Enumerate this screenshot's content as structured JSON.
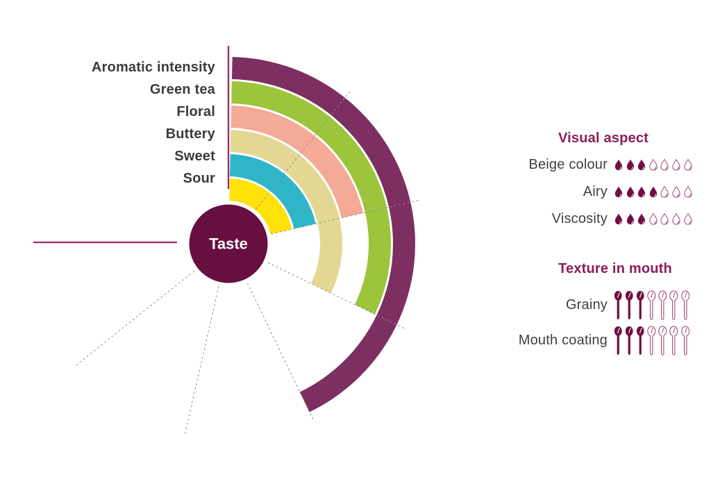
{
  "colors": {
    "center_circle": "#670F3F",
    "axis_line": "#9B2F63",
    "gridline": "#8F8F8F",
    "heading": "#8C1D57",
    "label_text": "#3B3B3B",
    "center_label_text": "#FFFFFF",
    "icon_filled": "#701044",
    "icon_outline": "#A6527E"
  },
  "chart_data": {
    "type": "radial-bar",
    "center_label": "Taste",
    "scale_max": 7,
    "max_sweep_deg": 270,
    "grid": "radial dashed lines at each unit, solid axis at 0 (top) and 270 (left)",
    "rings_outer_to_inner": [
      {
        "label": "Aromatic intensity",
        "value": 4,
        "color": "#7C2F60"
      },
      {
        "label": "Green tea",
        "value": 3,
        "color": "#9CC53C"
      },
      {
        "label": "Floral",
        "value": 2,
        "color": "#F5A997"
      },
      {
        "label": "Buttery",
        "value": 3,
        "color": "#E3D893"
      },
      {
        "label": "Sweet",
        "value": 2,
        "color": "#2FB5C8"
      },
      {
        "label": "Sour",
        "value": 2,
        "color": "#FFE20A"
      }
    ],
    "gridline_units": [
      1,
      2,
      3,
      4,
      5,
      6
    ]
  },
  "legend": {
    "sections": [
      {
        "title": "Visual aspect",
        "icon": "droplet",
        "max": 7,
        "rows": [
          {
            "label": "Beige colour",
            "value": 3
          },
          {
            "label": "Airy",
            "value": 4
          },
          {
            "label": "Viscosity",
            "value": 3
          }
        ]
      },
      {
        "title": "Texture in mouth",
        "icon": "spoon",
        "max": 7,
        "rows": [
          {
            "label": "Grainy",
            "value": 3
          },
          {
            "label": "Mouth coating",
            "value": 3
          }
        ]
      }
    ]
  }
}
